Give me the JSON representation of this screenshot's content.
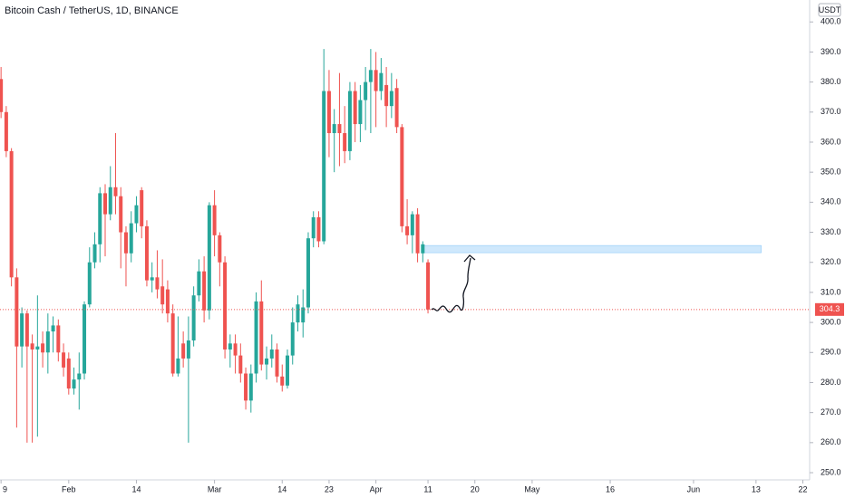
{
  "chart_data": {
    "type": "candlestick",
    "title": "Bitcoin Cash / TetherUS, 1D, BINANCE",
    "currency": "USDT",
    "up_color": "#26a69a",
    "down_color": "#ef5350",
    "zone_color": "#bbdefb",
    "grid": false,
    "xlim": [
      18.8,
      174.3
    ],
    "ylim": [
      247.6,
      407.3
    ],
    "xticks": [
      {
        "value": 19,
        "label": "9"
      },
      {
        "value": 32,
        "label": "Feb"
      },
      {
        "value": 45,
        "label": "14"
      },
      {
        "value": 60,
        "label": "Mar"
      },
      {
        "value": 73,
        "label": "14"
      },
      {
        "value": 82,
        "label": "23"
      },
      {
        "value": 91,
        "label": "Apr"
      },
      {
        "value": 101,
        "label": "11"
      },
      {
        "value": 110,
        "label": "20"
      },
      {
        "value": 121,
        "label": "May"
      },
      {
        "value": 136,
        "label": "16"
      },
      {
        "value": 152,
        "label": "Jun"
      },
      {
        "value": 164,
        "label": "13"
      },
      {
        "value": 173,
        "label": "22"
      }
    ],
    "yticks": [
      {
        "value": 250,
        "label": "250.0"
      },
      {
        "value": 260,
        "label": "260.0"
      },
      {
        "value": 270,
        "label": "270.0"
      },
      {
        "value": 280,
        "label": "280.0"
      },
      {
        "value": 290,
        "label": "290.0"
      },
      {
        "value": 300,
        "label": "300.0"
      },
      {
        "value": 310,
        "label": "310.0"
      },
      {
        "value": 320,
        "label": "320.0"
      },
      {
        "value": 330,
        "label": "330.0"
      },
      {
        "value": 340,
        "label": "340.0"
      },
      {
        "value": 350,
        "label": "350.0"
      },
      {
        "value": 360,
        "label": "360.0"
      },
      {
        "value": 370,
        "label": "370.0"
      },
      {
        "value": 380,
        "label": "380.0"
      },
      {
        "value": 390,
        "label": "390.0"
      },
      {
        "value": 400,
        "label": "400.0"
      }
    ],
    "last_price": 304.3,
    "zone": {
      "x": [
        100,
        165
      ],
      "y": [
        323.2,
        325.6
      ]
    },
    "x": [
      19,
      20,
      21,
      22,
      23,
      24,
      25,
      26,
      27,
      28,
      29,
      30,
      31,
      32,
      33,
      34,
      35,
      36,
      37,
      38,
      39,
      40,
      41,
      42,
      43,
      44,
      45,
      46,
      47,
      48,
      49,
      50,
      51,
      52,
      53,
      54,
      55,
      56,
      57,
      58,
      59,
      60,
      61,
      62,
      63,
      64,
      65,
      66,
      67,
      68,
      69,
      70,
      71,
      72,
      73,
      74,
      75,
      76,
      77,
      78,
      79,
      80,
      81,
      82,
      83,
      84,
      85,
      86,
      87,
      88,
      89,
      90,
      91,
      92,
      93,
      94,
      95,
      96,
      97,
      98,
      99,
      100,
      101
    ],
    "open": [
      381,
      370,
      357,
      315,
      292,
      303,
      293,
      291,
      293,
      290,
      297,
      299,
      290,
      288,
      278,
      281,
      283,
      306,
      320,
      326,
      343,
      336,
      345,
      342,
      330,
      323,
      333,
      344,
      332,
      314,
      315,
      312,
      311,
      303,
      283,
      293,
      288,
      294,
      309,
      317,
      304,
      339,
      329,
      320,
      291,
      293,
      289,
      283,
      274,
      283,
      307,
      286,
      288,
      291,
      282,
      279,
      289,
      300,
      300,
      305,
      328,
      335,
      327,
      377,
      363,
      366,
      363,
      357,
      377,
      366,
      374,
      380,
      384,
      377,
      379,
      372,
      378,
      365,
      332,
      329,
      336,
      323,
      320
    ],
    "high": [
      385,
      372,
      358,
      318,
      305,
      304,
      296,
      309,
      297,
      303,
      302,
      301,
      293,
      290,
      285,
      290,
      307,
      325,
      330,
      345,
      346,
      352,
      363,
      345,
      332,
      337,
      342,
      345,
      334,
      320,
      324,
      321,
      314,
      306,
      302,
      297,
      302,
      312,
      321,
      322,
      340,
      344,
      330,
      322,
      296,
      296,
      293,
      285,
      286,
      310,
      314,
      292,
      296,
      293,
      286,
      291,
      305,
      309,
      311,
      330,
      337,
      337,
      391,
      384,
      371,
      383,
      372,
      380,
      380,
      379,
      385,
      391,
      390,
      388,
      385,
      383,
      381,
      366,
      341,
      337,
      338,
      327,
      321
    ],
    "low": [
      368,
      355,
      312,
      265,
      285,
      260,
      260,
      262,
      285,
      283,
      290,
      287,
      282,
      276,
      276,
      271,
      281,
      305,
      318,
      320,
      322,
      334,
      336,
      318,
      312,
      320,
      330,
      328,
      312,
      310,
      308,
      303,
      300,
      282,
      282,
      285,
      260,
      292,
      307,
      300,
      301,
      322,
      312,
      288,
      285,
      283,
      280,
      271,
      270,
      280,
      284,
      281,
      285,
      280,
      277,
      278,
      286,
      297,
      295,
      303,
      325,
      325,
      326,
      355,
      350,
      352,
      353,
      354,
      360,
      360,
      364,
      363,
      365,
      374,
      365,
      368,
      363,
      330,
      326,
      323,
      320,
      320,
      303
    ],
    "close": [
      370,
      357,
      315,
      292,
      303,
      292,
      291,
      292,
      290,
      297,
      299,
      290,
      285,
      278,
      281,
      283,
      306,
      320,
      326,
      343,
      336,
      345,
      342,
      330,
      323,
      333,
      339,
      332,
      314,
      315,
      311,
      306,
      303,
      283,
      288,
      288,
      294,
      309,
      317,
      304,
      339,
      329,
      320,
      291,
      293,
      289,
      283,
      274,
      283,
      307,
      286,
      288,
      291,
      282,
      279,
      289,
      300,
      306,
      305,
      328,
      335,
      327,
      377,
      363,
      366,
      363,
      357,
      377,
      366,
      374,
      380,
      384,
      377,
      383,
      372,
      377,
      365,
      332,
      329,
      336,
      323,
      326,
      304.3
    ]
  }
}
